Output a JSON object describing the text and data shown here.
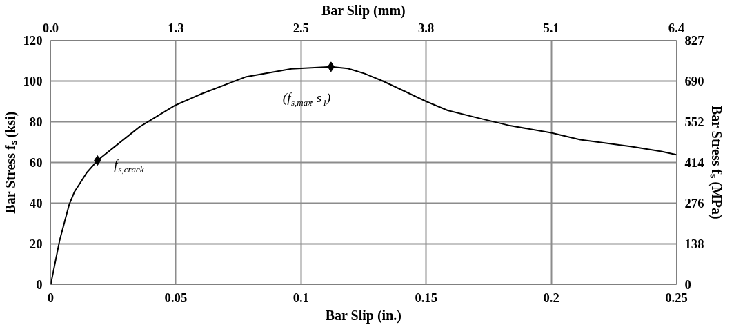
{
  "chart_data": {
    "type": "line",
    "xlabel": "Bar Slip (in.)",
    "ylabel": "Bar Stress fₛ (ksi)",
    "y2label": "Bar Stress fₛ (MPa)",
    "x2label": "Bar Slip (mm)",
    "xlim": [
      0,
      0.25
    ],
    "xticks": [
      0,
      0.05,
      0.1,
      0.15,
      0.2,
      0.25
    ],
    "ylim": [
      0,
      120
    ],
    "yticks": [
      0,
      20,
      40,
      60,
      80,
      100,
      120
    ],
    "x2lim": [
      0,
      6.35
    ],
    "x2ticks": [
      {
        "value": 0,
        "label": "0.0"
      },
      {
        "value": 1.27,
        "label": "1.3"
      },
      {
        "value": 2.54,
        "label": "2.5"
      },
      {
        "value": 3.81,
        "label": "3.8"
      },
      {
        "value": 5.08,
        "label": "5.1"
      },
      {
        "value": 6.35,
        "label": "6.4"
      }
    ],
    "y2lim": [
      0,
      827.4
    ],
    "y2ticks": [
      0,
      {
        "value": 137.9,
        "label": "138"
      },
      {
        "value": 275.8,
        "label": "276"
      },
      {
        "value": 413.7,
        "label": "414"
      },
      {
        "value": 551.6,
        "label": "552"
      },
      {
        "value": 689.5,
        "label": "690"
      },
      {
        "value": 827.4,
        "label": "827"
      }
    ],
    "grid": true,
    "series": [
      {
        "color": "#000000",
        "marker": "none",
        "line_style": "solid",
        "x": [
          0,
          0.0036,
          0.0074,
          0.0095,
          0.0144,
          0.0187,
          0.0247,
          0.0355,
          0.0496,
          0.0604,
          0.0778,
          0.0962,
          0.112,
          0.1187,
          0.1254,
          0.1327,
          0.1414,
          0.15,
          0.1586,
          0.1706,
          0.1835,
          0.2,
          0.2116,
          0.2224,
          0.2322,
          0.244,
          0.25
        ],
        "values": [
          0,
          21.9,
          39.4,
          45.6,
          55,
          61,
          66.9,
          77.5,
          88,
          93.8,
          102,
          106,
          107,
          106.2,
          103.7,
          100,
          95,
          90,
          85.6,
          81.9,
          78.1,
          74.6,
          71.2,
          69.4,
          67.8,
          65.4,
          63.8
        ]
      },
      {
        "type": "scatter",
        "color": "#000000",
        "marker": "diamond",
        "x": [
          0.0187,
          0.112
        ],
        "values": [
          61,
          107
        ]
      }
    ],
    "annotations": [
      {
        "text": "f$_{s,crack}$",
        "x": 0.0187,
        "y": 61
      },
      {
        "text": "(f$_{s,max}$, s$_{1}$)",
        "x": 0.112,
        "y": 107
      }
    ]
  }
}
